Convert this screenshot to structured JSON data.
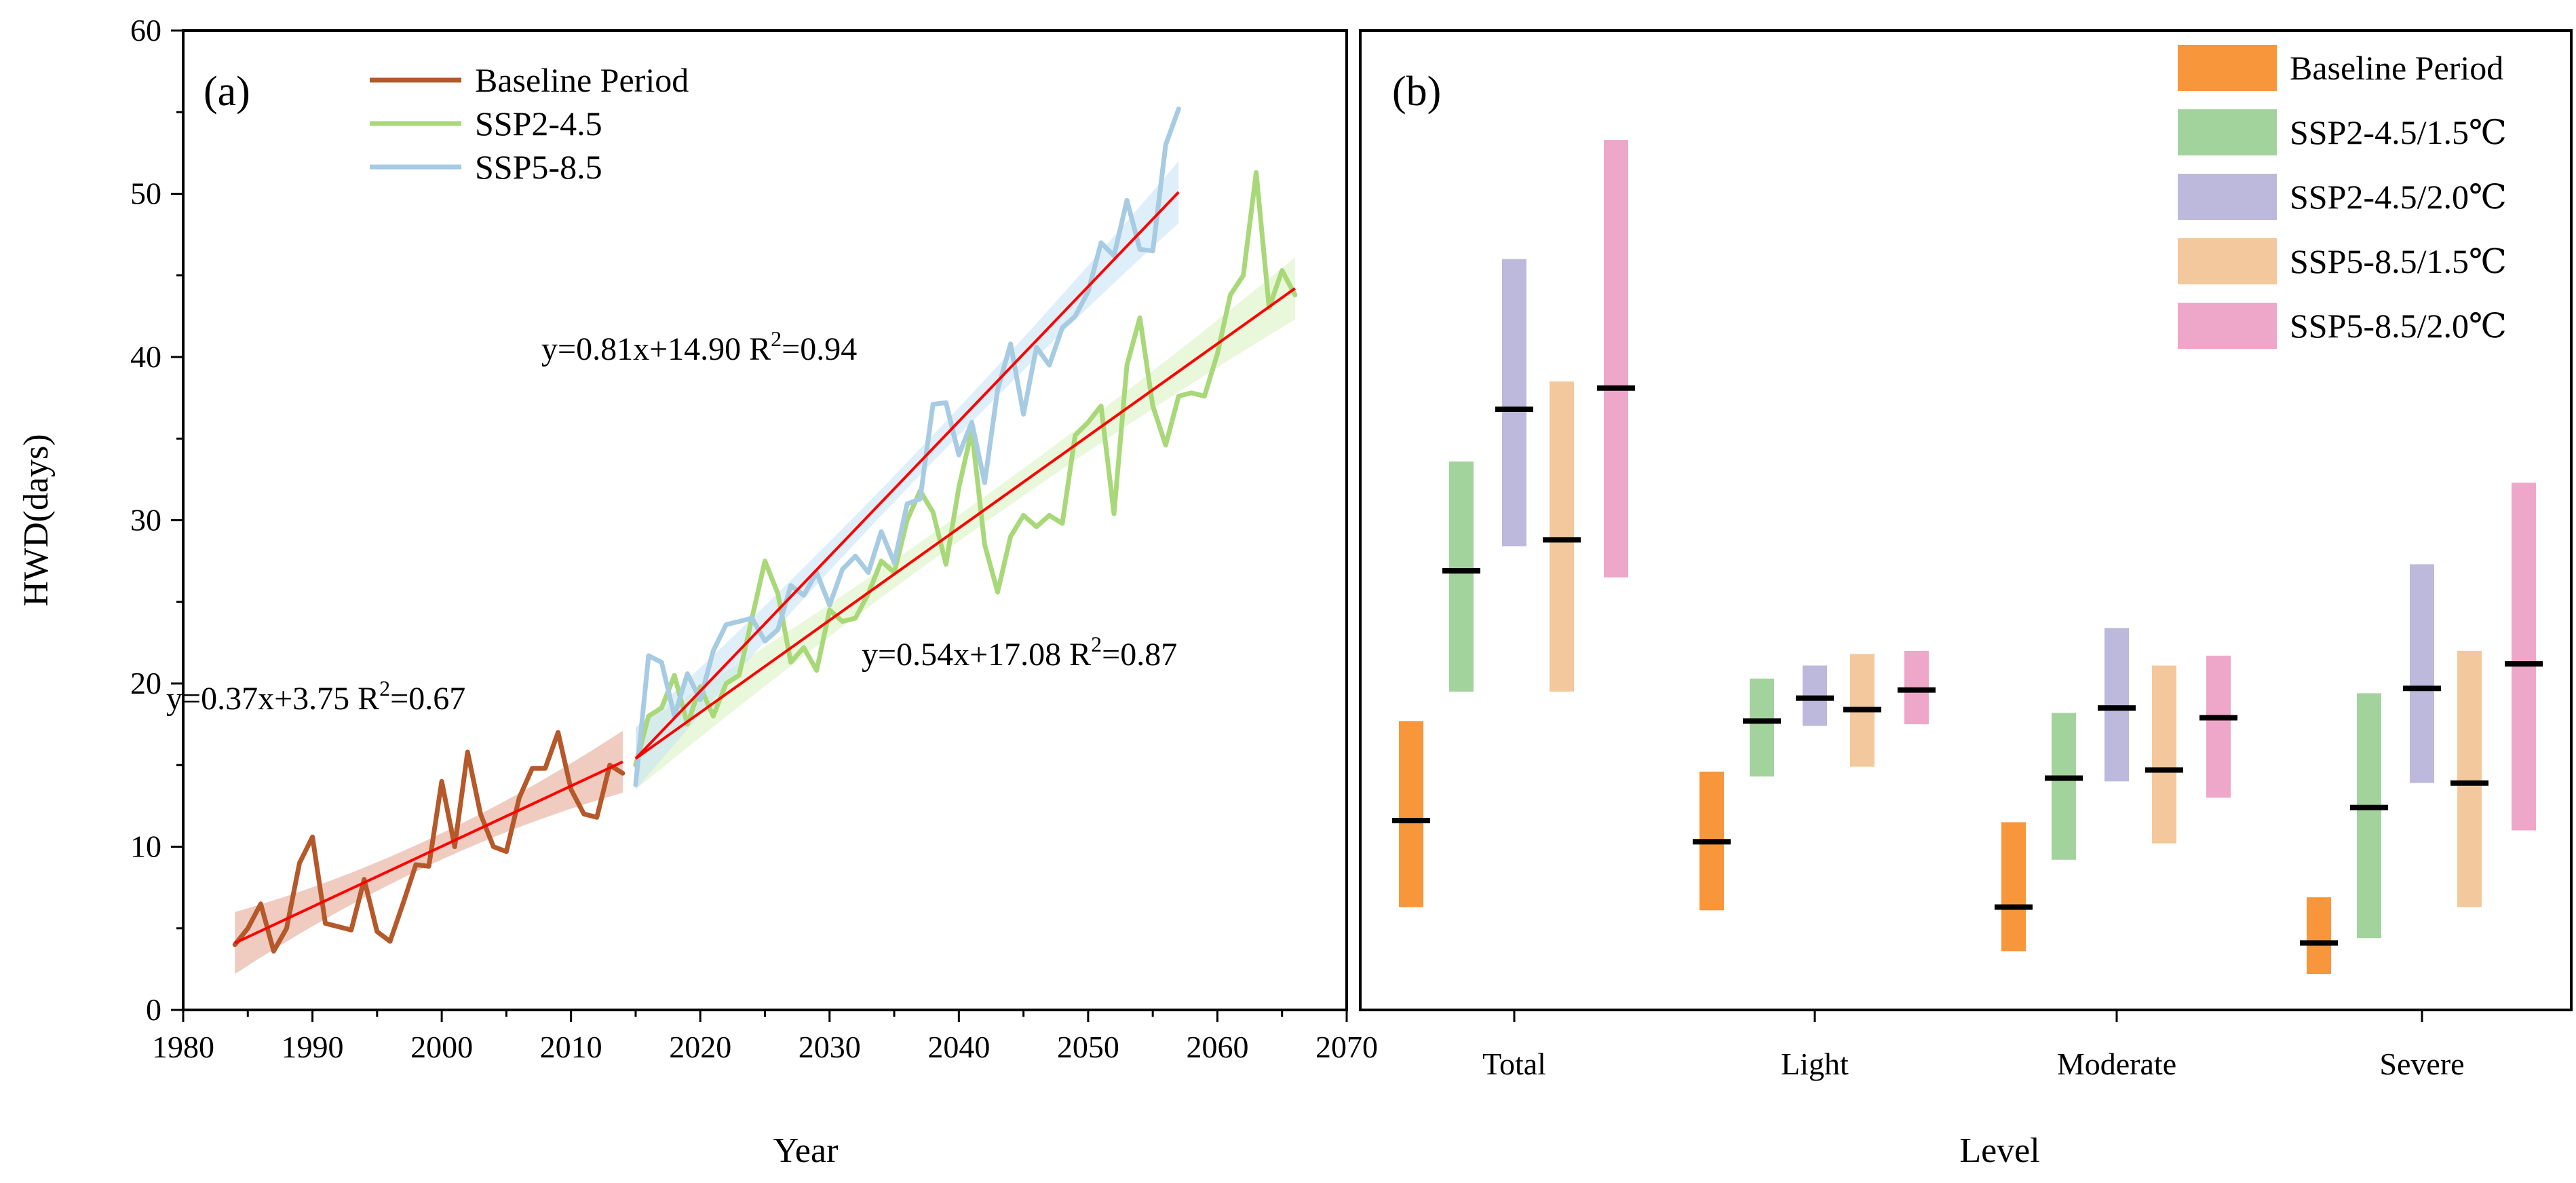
{
  "chart_data": [
    {
      "panel": "(a)",
      "type": "line",
      "xlabel": "Year",
      "ylabel": "HWD(days)",
      "xlim": [
        1980,
        2070
      ],
      "ylim": [
        0,
        60
      ],
      "xticks": [
        1980,
        1990,
        2000,
        2010,
        2020,
        2030,
        2040,
        2050,
        2060,
        2070
      ],
      "yticks": [
        0,
        10,
        20,
        30,
        40,
        50,
        60
      ],
      "grid": false,
      "legend_position": "top-left",
      "colors": {
        "baseline": "#b5582a",
        "ssp245": "#a8d878",
        "ssp585": "#a6cbe3",
        "fit": "#ff0000"
      },
      "series": [
        {
          "name": "Baseline Period",
          "x": [
            1984,
            1985,
            1986,
            1987,
            1988,
            1989,
            1990,
            1991,
            1992,
            1993,
            1994,
            1995,
            1996,
            1997,
            1998,
            1999,
            2000,
            2001,
            2002,
            2003,
            2004,
            2005,
            2006,
            2007,
            2008,
            2009,
            2010,
            2011,
            2012,
            2013,
            2014
          ],
          "values": [
            4.0,
            5.0,
            6.5,
            3.6,
            5.0,
            9.0,
            10.6,
            5.3,
            5.1,
            4.9,
            8.0,
            4.8,
            4.2,
            6.5,
            8.9,
            8.8,
            14.0,
            10.0,
            15.8,
            12.0,
            10.0,
            9.7,
            13.0,
            14.8,
            14.8,
            17.0,
            13.5,
            12.0,
            11.8,
            15.0,
            14.5
          ]
        },
        {
          "name": "SSP2-4.5",
          "x": [
            2015,
            2016,
            2017,
            2018,
            2019,
            2020,
            2021,
            2022,
            2023,
            2024,
            2025,
            2026,
            2027,
            2028,
            2029,
            2030,
            2031,
            2032,
            2033,
            2034,
            2035,
            2036,
            2037,
            2038,
            2039,
            2040,
            2041,
            2042,
            2043,
            2044,
            2045,
            2046,
            2047,
            2048,
            2049,
            2050,
            2051,
            2052,
            2053,
            2054,
            2055,
            2056,
            2057,
            2058,
            2059,
            2060,
            2061,
            2062,
            2063,
            2064,
            2065,
            2066
          ],
          "values": [
            15.0,
            18.0,
            18.5,
            20.5,
            17.5,
            19.8,
            18.0,
            20.0,
            20.5,
            24.0,
            27.5,
            25.5,
            21.3,
            22.2,
            20.8,
            24.5,
            23.8,
            24.0,
            25.5,
            27.5,
            26.8,
            30.0,
            31.8,
            30.5,
            27.3,
            32.0,
            35.5,
            28.5,
            25.6,
            29.0,
            30.3,
            29.6,
            30.3,
            29.8,
            35.2,
            36.0,
            37.0,
            30.4,
            39.5,
            42.4,
            37.0,
            34.6,
            37.6,
            37.8,
            37.6,
            40.2,
            43.8,
            45.0,
            51.3,
            43.0,
            45.3,
            43.8
          ]
        },
        {
          "name": "SSP5-8.5",
          "x": [
            2015,
            2016,
            2017,
            2018,
            2019,
            2020,
            2021,
            2022,
            2023,
            2024,
            2025,
            2026,
            2027,
            2028,
            2029,
            2030,
            2031,
            2032,
            2033,
            2034,
            2035,
            2036,
            2037,
            2038,
            2039,
            2040,
            2041,
            2042,
            2043,
            2044,
            2045,
            2046,
            2047,
            2048,
            2049,
            2050,
            2051,
            2052,
            2053,
            2054,
            2055,
            2056,
            2057
          ],
          "values": [
            13.8,
            21.7,
            21.3,
            18.0,
            20.6,
            19.0,
            22.0,
            23.6,
            23.8,
            24.0,
            22.6,
            23.3,
            26.0,
            25.4,
            26.8,
            24.8,
            27.0,
            27.8,
            26.8,
            29.3,
            27.4,
            31.0,
            31.3,
            37.1,
            37.2,
            34.0,
            36.0,
            32.3,
            38.0,
            40.8,
            36.5,
            40.6,
            39.5,
            41.8,
            42.5,
            44.0,
            47.0,
            46.2,
            49.6,
            46.6,
            46.5,
            53.0,
            55.2
          ]
        }
      ],
      "fits": [
        {
          "series": "Baseline Period",
          "equation": "y=0.37x+3.75",
          "r2_label": "R",
          "r2_value": "=0.67",
          "x_range": [
            1984,
            2014
          ],
          "y_range": [
            4.1,
            15.2
          ]
        },
        {
          "series": "SSP2-4.5",
          "equation": "y=0.54x+17.08",
          "r2_label": "R",
          "r2_value": "=0.87",
          "x_range": [
            2015,
            2066
          ],
          "y_range": [
            15.4,
            44.2
          ]
        },
        {
          "series": "SSP5-8.5",
          "equation": "y=0.81x+14.90",
          "r2_label": "R",
          "r2_value": "=0.94",
          "x_range": [
            2015,
            2057
          ],
          "y_range": [
            15.4,
            50.1
          ]
        }
      ]
    },
    {
      "panel": "(b)",
      "type": "bar",
      "subtype": "floating-range",
      "xlabel": "Level",
      "ylabel": "",
      "ylim": [
        0,
        60
      ],
      "grid": false,
      "legend_position": "top-right",
      "categories": [
        "Total",
        "Light",
        "Moderate",
        "Severe"
      ],
      "series": [
        {
          "name": "Baseline Period",
          "color": "#f7963a",
          "min": [
            6.3,
            6.1,
            3.6,
            2.2
          ],
          "max": [
            17.7,
            14.6,
            11.5,
            6.9
          ],
          "mean": [
            11.6,
            10.3,
            6.3,
            4.1
          ]
        },
        {
          "name": "SSP2-4.5/1.5℃",
          "color": "#a3d39c",
          "min": [
            19.5,
            14.3,
            9.2,
            4.4
          ],
          "max": [
            33.6,
            20.3,
            18.2,
            19.4
          ],
          "mean": [
            26.9,
            17.7,
            14.2,
            12.4
          ]
        },
        {
          "name": "SSP2-4.5/2.0℃",
          "color": "#bcb9dc",
          "min": [
            28.4,
            17.4,
            14.0,
            13.9
          ],
          "max": [
            46.0,
            21.1,
            23.4,
            27.3
          ],
          "mean": [
            36.8,
            19.1,
            18.5,
            19.7
          ]
        },
        {
          "name": "SSP5-8.5/1.5℃",
          "color": "#f3c89c",
          "min": [
            19.5,
            14.9,
            10.2,
            6.3
          ],
          "max": [
            38.5,
            21.8,
            21.1,
            22.0
          ],
          "mean": [
            28.8,
            18.4,
            14.7,
            13.9
          ]
        },
        {
          "name": "SSP5-8.5/2.0℃",
          "color": "#eea7c9",
          "min": [
            26.5,
            17.5,
            13.0,
            11.0
          ],
          "max": [
            53.3,
            22.0,
            21.7,
            32.3
          ],
          "mean": [
            38.1,
            19.6,
            17.9,
            21.2
          ]
        }
      ]
    }
  ]
}
